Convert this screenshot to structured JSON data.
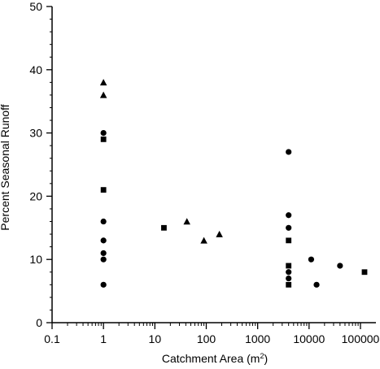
{
  "chart_data": {
    "type": "scatter",
    "title": "",
    "xlabel_main": "Catchment Area (m",
    "xlabel_sup": "2",
    "xlabel_close": ")",
    "ylabel": "Percent Seasonal Runoff",
    "xscale": "log",
    "xlim": [
      0.1,
      200000
    ],
    "ylim": [
      0,
      50
    ],
    "grid": false,
    "legend": "none",
    "x_ticks": [
      0.1,
      1,
      10,
      100,
      1000,
      10000,
      100000
    ],
    "x_tick_labels": [
      "0.1",
      "1",
      "10",
      "100",
      "1000",
      "10000",
      "100000"
    ],
    "y_ticks": [
      0,
      10,
      20,
      30,
      40,
      50
    ],
    "y_tick_labels": [
      "0",
      "10",
      "20",
      "30",
      "40",
      "50"
    ],
    "series": [
      {
        "marker": "triangle",
        "color": "#000000",
        "points": [
          {
            "x": 1,
            "y": 38
          },
          {
            "x": 1,
            "y": 36
          },
          {
            "x": 42,
            "y": 16
          },
          {
            "x": 90,
            "y": 13
          },
          {
            "x": 180,
            "y": 14
          }
        ]
      },
      {
        "marker": "circle",
        "color": "#000000",
        "points": [
          {
            "x": 1,
            "y": 30
          },
          {
            "x": 1,
            "y": 16
          },
          {
            "x": 1,
            "y": 13
          },
          {
            "x": 1,
            "y": 11
          },
          {
            "x": 1,
            "y": 10
          },
          {
            "x": 1,
            "y": 6
          },
          {
            "x": 4000,
            "y": 27
          },
          {
            "x": 4000,
            "y": 17
          },
          {
            "x": 4000,
            "y": 15
          },
          {
            "x": 4000,
            "y": 8
          },
          {
            "x": 4000,
            "y": 7
          },
          {
            "x": 11000,
            "y": 10
          },
          {
            "x": 14000,
            "y": 6
          },
          {
            "x": 40000,
            "y": 9
          }
        ]
      },
      {
        "marker": "square",
        "color": "#000000",
        "points": [
          {
            "x": 1,
            "y": 29
          },
          {
            "x": 1,
            "y": 21
          },
          {
            "x": 15,
            "y": 15
          },
          {
            "x": 4000,
            "y": 13
          },
          {
            "x": 4000,
            "y": 9
          },
          {
            "x": 4000,
            "y": 6
          },
          {
            "x": 120000,
            "y": 8
          }
        ]
      }
    ]
  }
}
